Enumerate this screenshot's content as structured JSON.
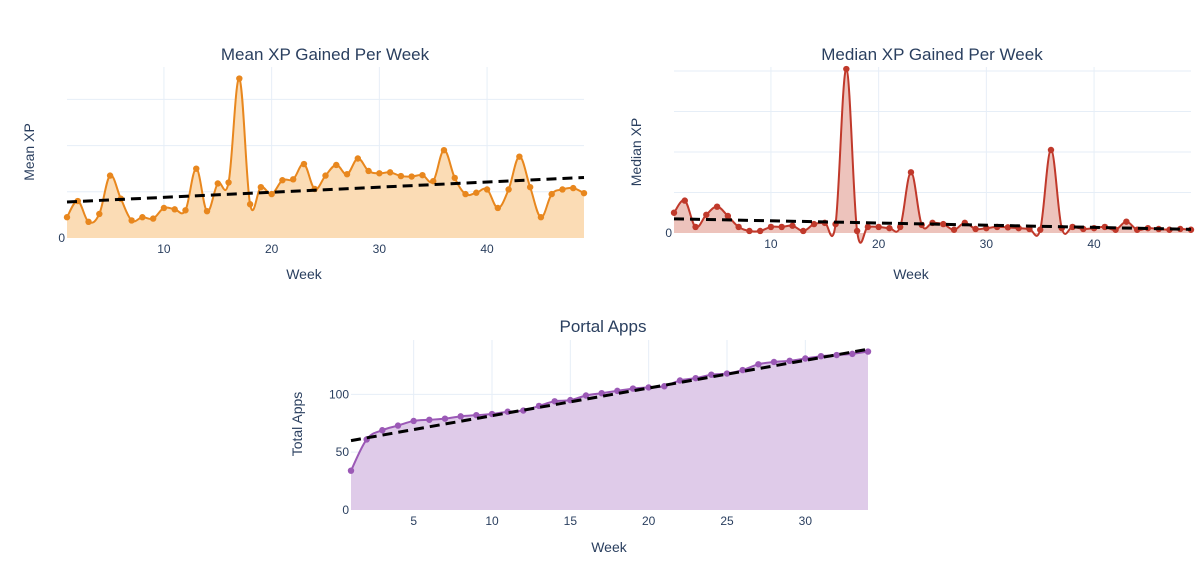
{
  "chart_data": [
    {
      "type": "area",
      "title": "Mean XP Gained Per Week",
      "xlabel": "Week",
      "ylabel": "Mean XP",
      "xlim": [
        1,
        49
      ],
      "ylim": [
        0,
        3.7
      ],
      "xticks": [
        10,
        20,
        30,
        40
      ],
      "yticks": [
        0
      ],
      "ygrid": [
        1,
        2,
        3
      ],
      "color": "#e8871e",
      "fill": "#fbdcb5",
      "x": [
        1,
        2,
        3,
        4,
        5,
        6,
        7,
        8,
        9,
        10,
        11,
        12,
        13,
        14,
        15,
        16,
        17,
        18,
        19,
        20,
        21,
        22,
        23,
        24,
        25,
        26,
        27,
        28,
        29,
        30,
        31,
        32,
        33,
        34,
        35,
        36,
        37,
        38,
        39,
        40,
        41,
        42,
        43,
        44,
        45,
        46,
        47,
        48,
        49
      ],
      "values": [
        0.45,
        0.8,
        0.35,
        0.52,
        1.35,
        0.85,
        0.38,
        0.45,
        0.42,
        0.65,
        0.62,
        0.6,
        1.5,
        0.58,
        1.18,
        1.2,
        3.45,
        0.73,
        1.1,
        0.95,
        1.25,
        1.27,
        1.6,
        1.06,
        1.35,
        1.58,
        1.38,
        1.72,
        1.45,
        1.4,
        1.42,
        1.34,
        1.33,
        1.36,
        1.23,
        1.9,
        1.3,
        0.95,
        0.98,
        1.05,
        0.65,
        1.05,
        1.76,
        1.1,
        0.45,
        0.95,
        1.05,
        1.08,
        0.97
      ],
      "trend": [
        0.78,
        1.31
      ]
    },
    {
      "type": "area",
      "title": "Median XP Gained Per Week",
      "xlabel": "Week",
      "ylabel": "Median XP",
      "xlim": [
        1,
        49
      ],
      "ylim": [
        0,
        4.1
      ],
      "xticks": [
        10,
        20,
        30,
        40
      ],
      "yticks": [
        0
      ],
      "ygrid": [
        1,
        2,
        3,
        4
      ],
      "color": "#c0392b",
      "fill": "#edc3bc",
      "x": [
        1,
        2,
        3,
        4,
        5,
        6,
        7,
        8,
        9,
        10,
        11,
        12,
        13,
        14,
        15,
        16,
        17,
        18,
        19,
        20,
        21,
        22,
        23,
        24,
        25,
        26,
        27,
        28,
        29,
        30,
        31,
        32,
        33,
        34,
        35,
        36,
        37,
        38,
        39,
        40,
        41,
        42,
        43,
        44,
        45,
        46,
        47,
        48,
        49
      ],
      "values": [
        0.5,
        0.8,
        0.15,
        0.45,
        0.65,
        0.42,
        0.15,
        0.05,
        0.05,
        0.15,
        0.15,
        0.18,
        0.05,
        0.22,
        0.25,
        0.22,
        4.05,
        0.05,
        0.15,
        0.15,
        0.12,
        0.15,
        1.5,
        0.2,
        0.25,
        0.22,
        0.08,
        0.25,
        0.1,
        0.12,
        0.15,
        0.14,
        0.12,
        0.1,
        0.08,
        2.05,
        0.12,
        0.15,
        0.1,
        0.12,
        0.15,
        0.08,
        0.28,
        0.08,
        0.12,
        0.1,
        0.08,
        0.1,
        0.08
      ],
      "trend": [
        0.35,
        0.09
      ]
    },
    {
      "type": "area",
      "title": "Portal Apps",
      "xlabel": "Week",
      "ylabel": "Total Apps",
      "xlim": [
        1,
        34
      ],
      "ylim": [
        0,
        147
      ],
      "xticks": [
        5,
        10,
        15,
        20,
        25,
        30
      ],
      "yticks": [
        0,
        50,
        100
      ],
      "color": "#9b59b6",
      "fill": "#dfcbe9",
      "x": [
        1,
        2,
        3,
        4,
        5,
        6,
        7,
        8,
        9,
        10,
        11,
        12,
        13,
        14,
        15,
        16,
        17,
        18,
        19,
        20,
        21,
        22,
        23,
        24,
        25,
        26,
        27,
        28,
        29,
        30,
        31,
        32,
        33,
        34
      ],
      "values": [
        34,
        61,
        69,
        73,
        77,
        78,
        79,
        81,
        82,
        83,
        85,
        86,
        90,
        94,
        95,
        99,
        101,
        103,
        105,
        106,
        107,
        112,
        114,
        117,
        118,
        121,
        126,
        128,
        129,
        131,
        133,
        134,
        135,
        137
      ],
      "trend": [
        60,
        139
      ]
    }
  ]
}
